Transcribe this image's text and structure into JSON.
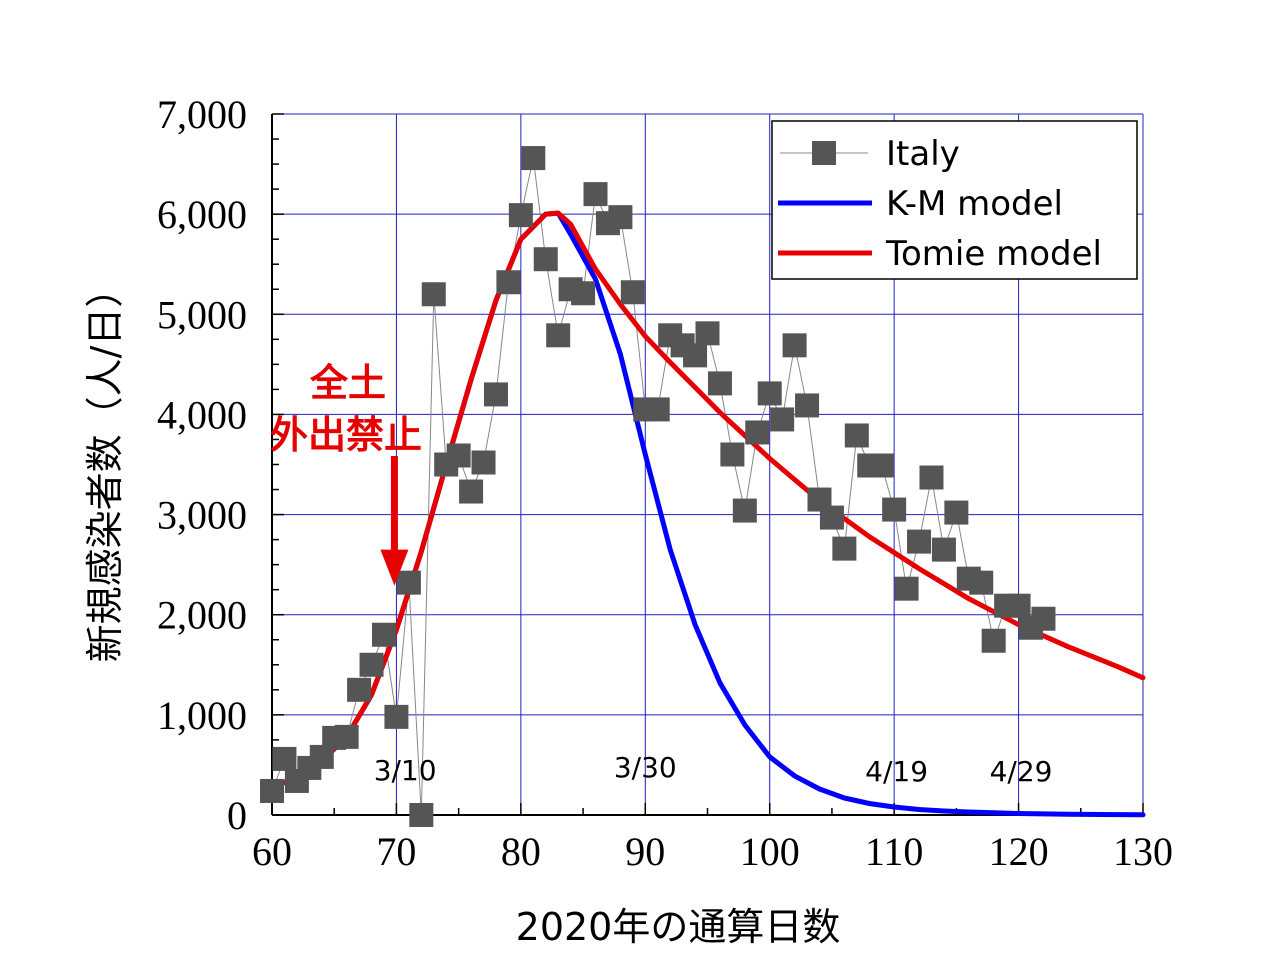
{
  "chart_data": {
    "type": "line",
    "title": "",
    "xlabel": "2020年の通算日数",
    "ylabel": "新規感染者数（人/日）",
    "xlim": [
      60,
      130
    ],
    "ylim": [
      0,
      7000
    ],
    "x_ticks": [
      60,
      70,
      80,
      90,
      100,
      110,
      120,
      130
    ],
    "x_tick_labels": [
      "60",
      "70",
      "80",
      "90",
      "100",
      "110",
      "120",
      "130"
    ],
    "y_ticks": [
      0,
      1000,
      2000,
      3000,
      4000,
      5000,
      6000,
      7000
    ],
    "y_tick_labels": [
      "0",
      "1,000",
      "2,000",
      "3,000",
      "4,000",
      "5,000",
      "6,000",
      "7,000"
    ],
    "grid": true,
    "legend_position": "top-right",
    "colors": {
      "italy": "#555555",
      "km": "#0000ff",
      "tomie": "#e60000",
      "grid": "#2020c0",
      "annotation": "#e60000"
    },
    "series": [
      {
        "name": "Italy",
        "kind": "scatter-line",
        "marker": "square",
        "x": [
          60,
          61,
          62,
          63,
          64,
          65,
          66,
          67,
          68,
          69,
          70,
          71,
          72,
          73,
          74,
          75,
          76,
          77,
          78,
          79,
          80,
          81,
          82,
          83,
          84,
          85,
          86,
          87,
          88,
          89,
          90,
          91,
          92,
          93,
          94,
          95,
          96,
          97,
          98,
          99,
          100,
          101,
          102,
          103,
          104,
          105,
          106,
          107,
          108,
          109,
          110,
          111,
          112,
          113,
          114,
          115,
          116,
          117,
          118,
          119,
          120,
          121,
          122
        ],
        "y": [
          240,
          560,
          340,
          470,
          580,
          770,
          780,
          1250,
          1500,
          1800,
          980,
          2320,
          0,
          5200,
          3500,
          3590,
          3230,
          3520,
          4200,
          5320,
          5990,
          6560,
          5550,
          4790,
          5250,
          5210,
          6200,
          5910,
          5970,
          5220,
          4050,
          4050,
          4790,
          4690,
          4590,
          4810,
          4310,
          3600,
          3040,
          3820,
          4210,
          3950,
          4690,
          4090,
          3150,
          2970,
          2660,
          3790,
          3490,
          3490,
          3050,
          2260,
          2730,
          3370,
          2650,
          3020,
          2360,
          2320,
          1740,
          2090,
          2090,
          1870,
          1960
        ]
      },
      {
        "name": "K-M model",
        "kind": "line",
        "x": [
          60,
          62,
          64,
          66,
          68,
          70,
          72,
          74,
          76,
          78,
          80,
          82,
          83,
          84,
          86,
          88,
          90,
          92,
          94,
          96,
          98,
          100,
          102,
          104,
          106,
          108,
          110,
          112,
          114,
          116,
          118,
          120,
          124,
          128,
          130
        ],
        "y": [
          270,
          380,
          540,
          780,
          1200,
          1850,
          2630,
          3500,
          4350,
          5140,
          5750,
          6000,
          6010,
          5800,
          5350,
          4600,
          3600,
          2650,
          1900,
          1320,
          900,
          580,
          390,
          260,
          170,
          115,
          80,
          55,
          40,
          30,
          22,
          15,
          8,
          4,
          2
        ]
      },
      {
        "name": "Tomie model",
        "kind": "line",
        "x": [
          60,
          62,
          64,
          66,
          68,
          70,
          72,
          74,
          76,
          78,
          80,
          82,
          83,
          84,
          86,
          88,
          90,
          92,
          94,
          96,
          98,
          100,
          104,
          108,
          112,
          116,
          120,
          124,
          128,
          130
        ],
        "y": [
          270,
          380,
          540,
          780,
          1200,
          1850,
          2630,
          3500,
          4350,
          5140,
          5750,
          6000,
          6010,
          5900,
          5450,
          5100,
          4780,
          4520,
          4270,
          4020,
          3790,
          3560,
          3140,
          2780,
          2460,
          2160,
          1900,
          1680,
          1480,
          1370
        ]
      }
    ],
    "date_markers": [
      {
        "label": "3/10",
        "x": 70.7,
        "y": 450
      },
      {
        "label": "3/30",
        "x": 90,
        "y": 480
      },
      {
        "label": "4/19",
        "x": 110.2,
        "y": 440
      },
      {
        "label": "4/29",
        "x": 120.2,
        "y": 440
      }
    ],
    "annotation": {
      "lines": [
        "全土",
        "外出禁止"
      ],
      "arrow_x": 70,
      "arrow_from_y": 3600,
      "arrow_to_y": 2350
    }
  }
}
